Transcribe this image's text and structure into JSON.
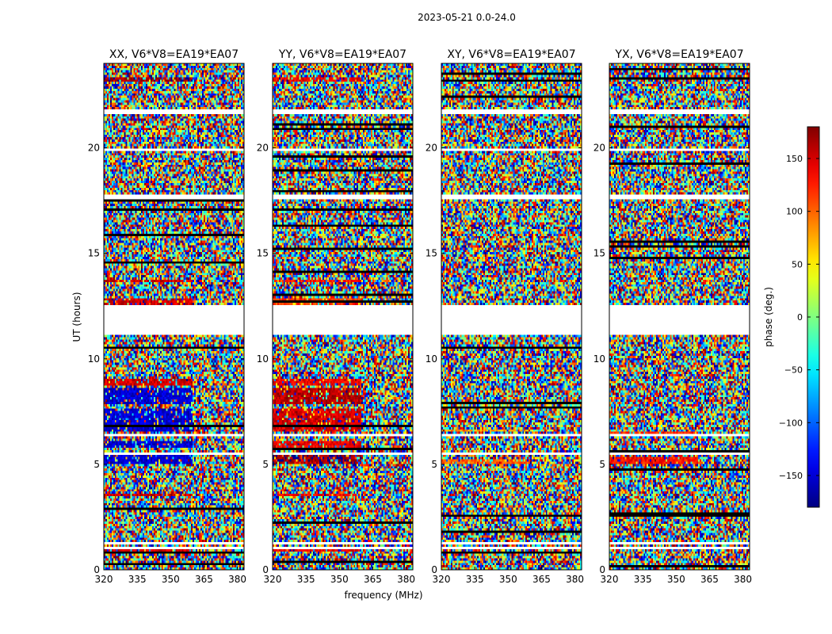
{
  "figure": {
    "suptitle": "2023-05-21 0.0-24.0"
  },
  "chart_data": {
    "type": "heatmap",
    "colormap": "jet",
    "xlabel": "frequency (MHz)",
    "ylabel": "UT (hours)",
    "xlim": [
      320,
      383
    ],
    "ylim": [
      0,
      24
    ],
    "xticks": [
      320,
      335,
      350,
      365,
      380
    ],
    "yticks": [
      0,
      5,
      10,
      15,
      20
    ],
    "colorbar": {
      "label": "phase (deg.)",
      "range": [
        -180,
        180
      ],
      "ticks": [
        150,
        100,
        50,
        0,
        -50,
        -100,
        -150
      ],
      "tick_labels": [
        "150",
        "100",
        "50",
        "0",
        "−50",
        "−100",
        "−150"
      ]
    },
    "flagged_intervals_hours": [
      [
        11.1,
        12.5
      ],
      [
        21.6,
        21.8
      ],
      [
        19.9,
        20.0
      ],
      [
        17.6,
        17.8
      ],
      [
        6.3,
        6.45
      ],
      [
        5.5,
        5.6
      ],
      [
        1.2,
        1.3
      ],
      [
        0.95,
        1.05
      ]
    ],
    "panels": [
      {
        "title": "XX, V6*V8=EA19*EA07",
        "phase_bands": [
          [
            12.5,
            12.9,
            150
          ],
          [
            13.6,
            13.8,
            150
          ],
          [
            8.7,
            9.1,
            150
          ],
          [
            7.8,
            8.6,
            -150
          ],
          [
            6.5,
            7.6,
            -150
          ],
          [
            5.0,
            5.4,
            -150
          ],
          [
            5.8,
            6.1,
            -150
          ],
          [
            3.5,
            3.6,
            150
          ],
          [
            0.9,
            1.0,
            150
          ],
          [
            23.1,
            23.3,
            170
          ]
        ]
      },
      {
        "title": "YY, V6*V8=EA19*EA07",
        "phase_bands": [
          [
            12.5,
            12.9,
            120
          ],
          [
            13.6,
            13.8,
            130
          ],
          [
            8.7,
            9.1,
            140
          ],
          [
            7.8,
            8.6,
            160
          ],
          [
            6.5,
            7.6,
            150
          ],
          [
            5.0,
            5.4,
            170
          ],
          [
            5.8,
            6.1,
            140
          ],
          [
            3.5,
            3.6,
            140
          ],
          [
            0.9,
            1.0,
            140
          ],
          [
            23.1,
            23.3,
            140
          ]
        ]
      },
      {
        "title": "XY, V6*V8=EA19*EA07",
        "phase_bands": [
          [
            5.0,
            5.2,
            100
          ],
          [
            6.5,
            6.7,
            80
          ]
        ]
      },
      {
        "title": "YX, V6*V8=EA19*EA07",
        "phase_bands": [
          [
            5.0,
            5.3,
            130
          ],
          [
            6.4,
            6.6,
            120
          ]
        ]
      }
    ]
  }
}
